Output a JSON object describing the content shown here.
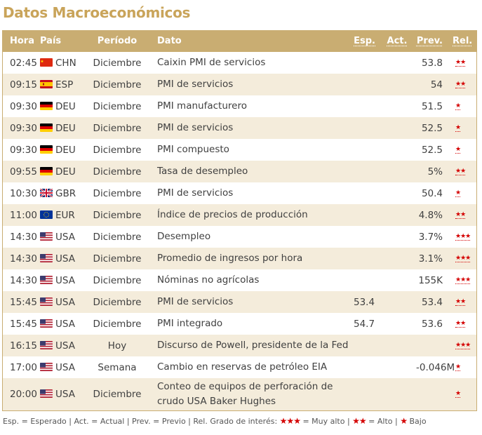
{
  "title": "Datos Macroeconómicos",
  "headers": {
    "time": "Hora",
    "country": "País",
    "period": "Período",
    "event": "Dato",
    "expected": "Esp.",
    "actual": "Act.",
    "previous": "Prev.",
    "relevance": "Rel."
  },
  "rows": [
    {
      "time": "02:45",
      "country": "CHN",
      "flag": "china-flag-icon",
      "period": "Diciembre",
      "event": "Caixin PMI de servicios",
      "expected": "",
      "actual": "",
      "previous": "53.8",
      "stars": "★★",
      "level": 2
    },
    {
      "time": "09:15",
      "country": "ESP",
      "flag": "spain-flag-icon",
      "period": "Diciembre",
      "event": "PMI de servicios",
      "expected": "",
      "actual": "",
      "previous": "54",
      "stars": "★★",
      "level": 2
    },
    {
      "time": "09:30",
      "country": "DEU",
      "flag": "germany-flag-icon",
      "period": "Diciembre",
      "event": "PMI manufacturero",
      "expected": "",
      "actual": "",
      "previous": "51.5",
      "stars": "★",
      "level": 1
    },
    {
      "time": "09:30",
      "country": "DEU",
      "flag": "germany-flag-icon",
      "period": "Diciembre",
      "event": "PMI de servicios",
      "expected": "",
      "actual": "",
      "previous": "52.5",
      "stars": "★",
      "level": 1
    },
    {
      "time": "09:30",
      "country": "DEU",
      "flag": "germany-flag-icon",
      "period": "Diciembre",
      "event": "PMI compuesto",
      "expected": "",
      "actual": "",
      "previous": "52.5",
      "stars": "★",
      "level": 1
    },
    {
      "time": "09:55",
      "country": "DEU",
      "flag": "germany-flag-icon",
      "period": "Diciembre",
      "event": "Tasa de desempleo",
      "expected": "",
      "actual": "",
      "previous": "5%",
      "stars": "★★",
      "level": 2
    },
    {
      "time": "10:30",
      "country": "GBR",
      "flag": "uk-flag-icon",
      "period": "Diciembre",
      "event": "PMI de servicios",
      "expected": "",
      "actual": "",
      "previous": "50.4",
      "stars": "★",
      "level": 1
    },
    {
      "time": "11:00",
      "country": "EUR",
      "flag": "eu-flag-icon",
      "period": "Diciembre",
      "event": "Índice de precios de producción",
      "expected": "",
      "actual": "",
      "previous": "4.8%",
      "stars": "★★",
      "level": 2
    },
    {
      "time": "14:30",
      "country": "USA",
      "flag": "usa-flag-icon",
      "period": "Diciembre",
      "event": "Desempleo",
      "expected": "",
      "actual": "",
      "previous": "3.7%",
      "stars": "★★★",
      "level": 3
    },
    {
      "time": "14:30",
      "country": "USA",
      "flag": "usa-flag-icon",
      "period": "Diciembre",
      "event": "Promedio de ingresos por hora",
      "expected": "",
      "actual": "",
      "previous": "3.1%",
      "stars": "★★★",
      "level": 3
    },
    {
      "time": "14:30",
      "country": "USA",
      "flag": "usa-flag-icon",
      "period": "Diciembre",
      "event": "Nóminas no agrícolas",
      "expected": "",
      "actual": "",
      "previous": "155K",
      "stars": "★★★",
      "level": 3
    },
    {
      "time": "15:45",
      "country": "USA",
      "flag": "usa-flag-icon",
      "period": "Diciembre",
      "event": "PMI de servicios",
      "expected": "53.4",
      "actual": "",
      "previous": "53.4",
      "stars": "★★",
      "level": 2
    },
    {
      "time": "15:45",
      "country": "USA",
      "flag": "usa-flag-icon",
      "period": "Diciembre",
      "event": "PMI integrado",
      "expected": "54.7",
      "actual": "",
      "previous": "53.6",
      "stars": "★★",
      "level": 2
    },
    {
      "time": "16:15",
      "country": "USA",
      "flag": "usa-flag-icon",
      "period": "Hoy",
      "event": "Discurso de Powell, presidente de la Fed",
      "expected": "",
      "actual": "",
      "previous": "",
      "stars": "★★★",
      "level": 3
    },
    {
      "time": "17:00",
      "country": "USA",
      "flag": "usa-flag-icon",
      "period": "Semana",
      "event": "Cambio en reservas de petróleo EIA",
      "expected": "",
      "actual": "",
      "previous": "-0.046M",
      "stars": "★",
      "level": 1
    },
    {
      "time": "20:00",
      "country": "USA",
      "flag": "usa-flag-icon",
      "period": "Diciembre",
      "event": "Conteo de equipos de perforación de crudo USA Baker Hughes",
      "expected": "",
      "actual": "",
      "previous": "",
      "stars": "★",
      "level": 1
    }
  ],
  "legend": {
    "text_a": "Esp. = Esperado | Act. = Actual | Prev. = Previo | Rel. Grado de interés: ",
    "stars3": "★★★",
    "text_b": " = Muy alto | ",
    "stars2": "★★",
    "text_c": " = Alto | ",
    "stars1": "★",
    "text_d": " Bajo"
  },
  "colors": {
    "header_bg": "#c9ad72",
    "title": "#c9a45a",
    "alt_row": "#f4ecdb",
    "star": "#d40000"
  }
}
